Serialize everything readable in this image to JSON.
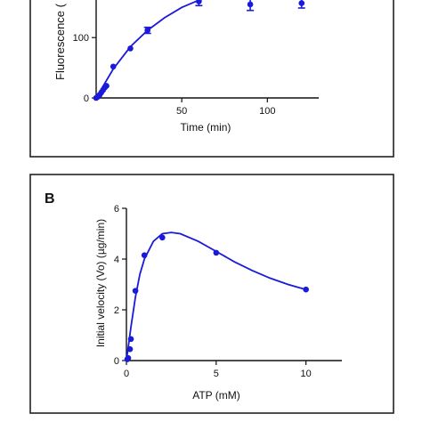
{
  "colors": {
    "series": "#1a1adb",
    "axis": "#111111",
    "frame": "#222222"
  },
  "chart_data": [
    {
      "panel_label": "",
      "type": "line",
      "title": "",
      "xlabel": "Time (min)",
      "ylabel": "Fluorescence (",
      "xlim": [
        0,
        130
      ],
      "ylim": [
        0,
        180
      ],
      "x_ticks": [
        {
          "v": 50,
          "label": "50"
        },
        {
          "v": 100,
          "label": "100"
        }
      ],
      "y_ticks": [
        {
          "v": 0,
          "label": "0"
        },
        {
          "v": 100,
          "label": "100"
        }
      ],
      "grid": false,
      "series": [
        {
          "points": [
            {
              "x": 0,
              "y": 0
            },
            {
              "x": 1,
              "y": 2
            },
            {
              "x": 2,
              "y": 5
            },
            {
              "x": 3,
              "y": 9
            },
            {
              "x": 4,
              "y": 13
            },
            {
              "x": 5,
              "y": 17
            },
            {
              "x": 6,
              "y": 20
            },
            {
              "x": 10,
              "y": 52
            },
            {
              "x": 20,
              "y": 82
            },
            {
              "x": 30,
              "y": 112
            },
            {
              "x": 60,
              "y": 160
            },
            {
              "x": 90,
              "y": 155
            },
            {
              "x": 120,
              "y": 157
            }
          ],
          "error": [
            0,
            0,
            0,
            0,
            0,
            0,
            0,
            0,
            0,
            5,
            7,
            10,
            8
          ],
          "fit": [
            {
              "x": 0,
              "y": 0
            },
            {
              "x": 10,
              "y": 48
            },
            {
              "x": 20,
              "y": 85
            },
            {
              "x": 30,
              "y": 112
            },
            {
              "x": 40,
              "y": 133
            },
            {
              "x": 50,
              "y": 150
            },
            {
              "x": 60,
              "y": 162
            },
            {
              "x": 70,
              "y": 170
            },
            {
              "x": 80,
              "y": 176
            },
            {
              "x": 90,
              "y": 180
            },
            {
              "x": 100,
              "y": 183
            },
            {
              "x": 110,
              "y": 185
            },
            {
              "x": 120,
              "y": 186
            }
          ]
        }
      ]
    },
    {
      "panel_label": "B",
      "type": "line",
      "title": "",
      "xlabel": "ATP (mM)",
      "ylabel": "Initial velocity (Vo) (µg/min)",
      "xlim": [
        0,
        12
      ],
      "ylim": [
        0,
        6
      ],
      "x_ticks": [
        {
          "v": 0,
          "label": "0"
        },
        {
          "v": 5,
          "label": "5"
        },
        {
          "v": 10,
          "label": "10"
        }
      ],
      "y_ticks": [
        {
          "v": 0,
          "label": "0"
        },
        {
          "v": 2,
          "label": "2"
        },
        {
          "v": 4,
          "label": "4"
        },
        {
          "v": 6,
          "label": "6"
        }
      ],
      "grid": false,
      "series": [
        {
          "points": [
            {
              "x": 0.05,
              "y": 0.05
            },
            {
              "x": 0.1,
              "y": 0.1
            },
            {
              "x": 0.2,
              "y": 0.45
            },
            {
              "x": 0.25,
              "y": 0.85
            },
            {
              "x": 0.5,
              "y": 2.75
            },
            {
              "x": 1.0,
              "y": 4.15
            },
            {
              "x": 2.0,
              "y": 4.85
            },
            {
              "x": 5.0,
              "y": 4.25
            },
            {
              "x": 10.0,
              "y": 2.8
            }
          ],
          "fit": [
            {
              "x": 0,
              "y": 0
            },
            {
              "x": 0.25,
              "y": 1.3
            },
            {
              "x": 0.5,
              "y": 2.5
            },
            {
              "x": 0.75,
              "y": 3.4
            },
            {
              "x": 1.0,
              "y": 4.0
            },
            {
              "x": 1.5,
              "y": 4.7
            },
            {
              "x": 2.0,
              "y": 5.0
            },
            {
              "x": 2.5,
              "y": 5.05
            },
            {
              "x": 3.0,
              "y": 5.0
            },
            {
              "x": 4.0,
              "y": 4.7
            },
            {
              "x": 5.0,
              "y": 4.3
            },
            {
              "x": 6.0,
              "y": 3.9
            },
            {
              "x": 7.0,
              "y": 3.55
            },
            {
              "x": 8.0,
              "y": 3.25
            },
            {
              "x": 9.0,
              "y": 3.0
            },
            {
              "x": 10.0,
              "y": 2.8
            }
          ]
        }
      ]
    }
  ]
}
